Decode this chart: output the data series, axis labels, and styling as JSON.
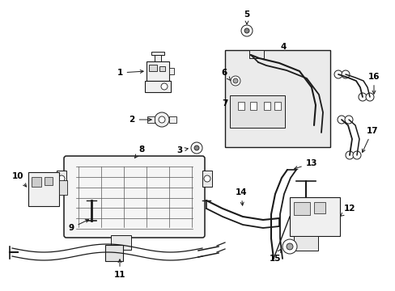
{
  "bg_color": "#ffffff",
  "fig_width": 4.89,
  "fig_height": 3.6,
  "dpi": 100,
  "line_color": "#1a1a1a",
  "text_color": "#000000",
  "font_size": 7.5
}
